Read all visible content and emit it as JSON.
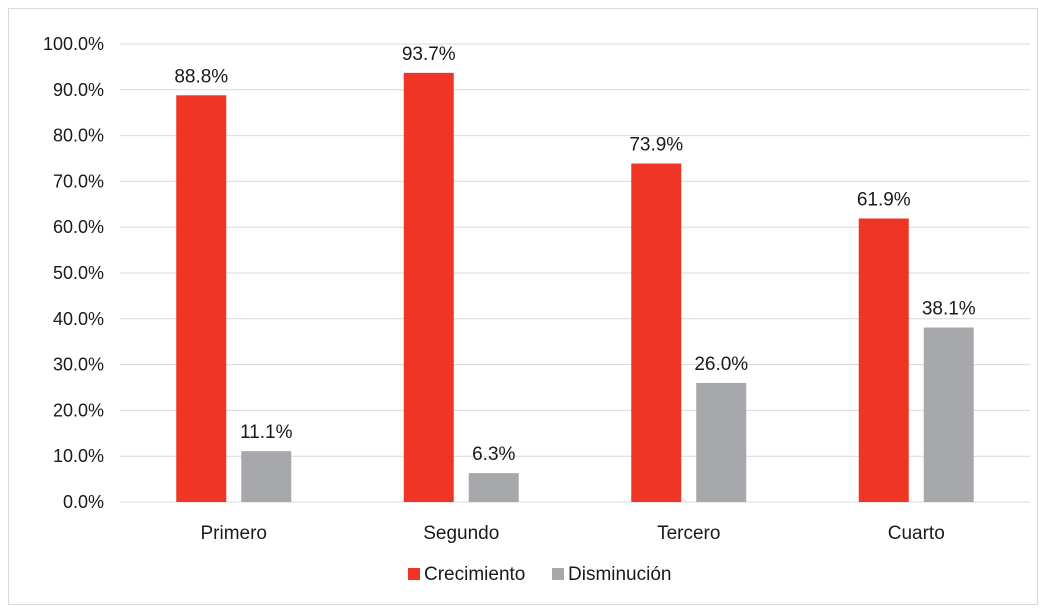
{
  "chart_data": {
    "type": "bar",
    "categories": [
      "Primero",
      "Segundo",
      "Tercero",
      "Cuarto"
    ],
    "series": [
      {
        "name": "Crecimiento",
        "color": "#ef3524",
        "values": [
          88.8,
          93.7,
          73.9,
          61.9
        ],
        "labels": [
          "88.8%",
          "93.7%",
          "73.9%",
          "61.9%"
        ]
      },
      {
        "name": "Disminución",
        "color": "#a7a8ab",
        "values": [
          11.1,
          6.3,
          26.0,
          38.1
        ],
        "labels": [
          "11.1%",
          "6.3%",
          "26.0%",
          "38.1%"
        ]
      }
    ],
    "ylim": [
      0,
      100
    ],
    "yticks": [
      0,
      10,
      20,
      30,
      40,
      50,
      60,
      70,
      80,
      90,
      100
    ],
    "ytick_labels": [
      "0.0%",
      "10.0%",
      "20.0%",
      "30.0%",
      "40.0%",
      "50.0%",
      "60.0%",
      "70.0%",
      "80.0%",
      "90.0%",
      "100.0%"
    ],
    "grid": true,
    "gridline_color": "#d9d9d9",
    "legend_position": "bottom-center",
    "title": "",
    "xlabel": "",
    "ylabel": ""
  }
}
